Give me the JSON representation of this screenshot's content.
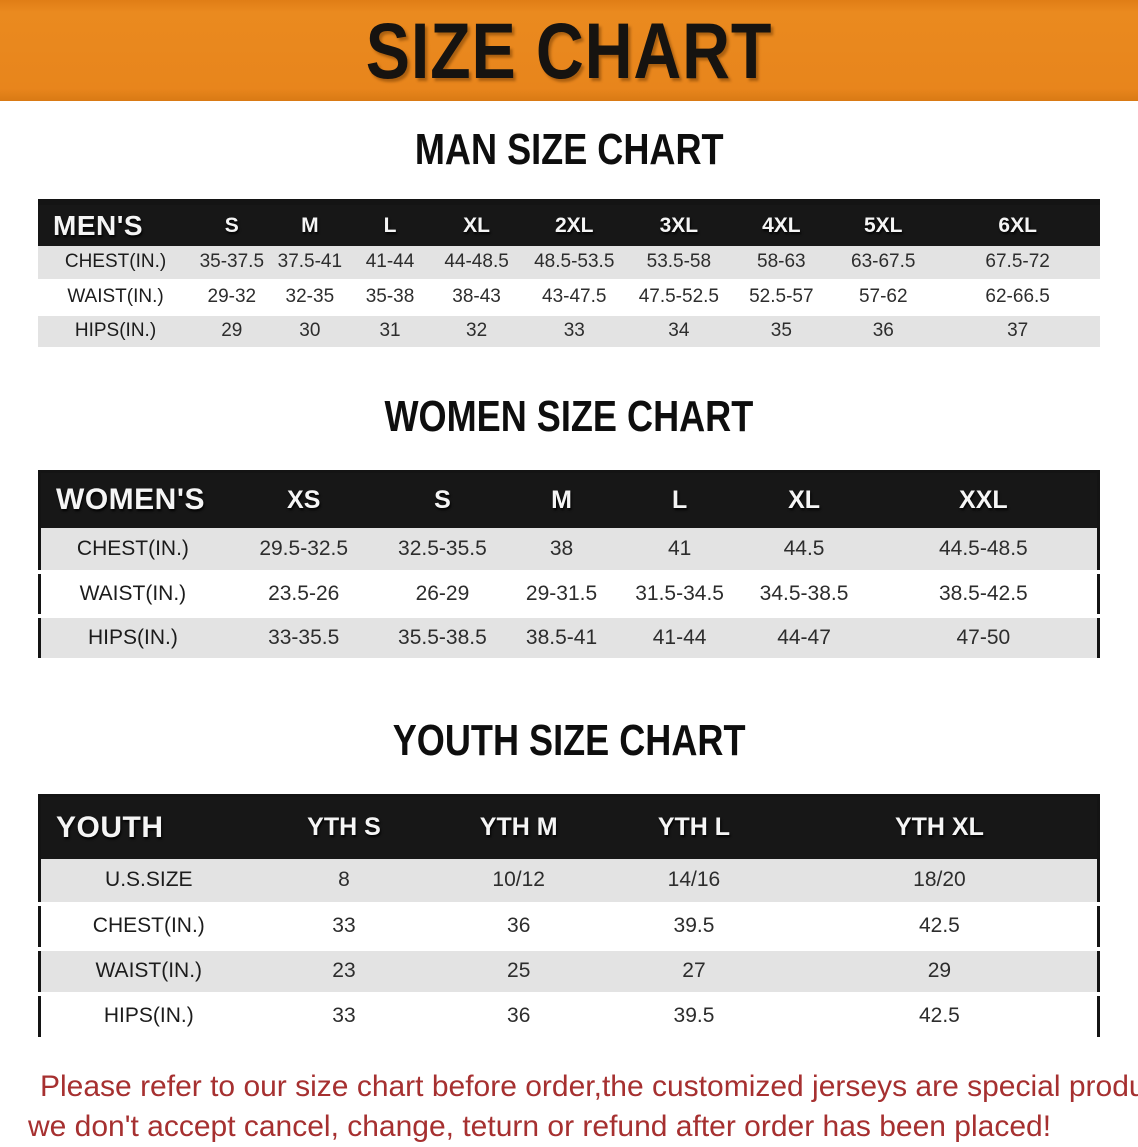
{
  "banner": {
    "title": "SIZE CHART"
  },
  "sections": [
    {
      "heading": "MAN SIZE CHART",
      "table": {
        "header": [
          "MEN'S",
          "S",
          "M",
          "L",
          "XL",
          "2XL",
          "3XL",
          "4XL",
          "5XL",
          "6XL"
        ],
        "rows": [
          [
            "CHEST(IN.)",
            "35-37.5",
            "37.5-41",
            "41-44",
            "44-48.5",
            "48.5-53.5",
            "53.5-58",
            "58-63",
            "63-67.5",
            "67.5-72"
          ],
          [
            "WAIST(IN.)",
            "29-32",
            "32-35",
            "35-38",
            "38-43",
            "43-47.5",
            "47.5-52.5",
            "52.5-57",
            "57-62",
            "62-66.5"
          ],
          [
            "HIPS(IN.)",
            "29",
            "30",
            "31",
            "32",
            "33",
            "34",
            "35",
            "36",
            "37"
          ]
        ]
      }
    },
    {
      "heading": "WOMEN SIZE CHART",
      "table": {
        "header": [
          "WOMEN'S",
          "XS",
          "S",
          "M",
          "L",
          "XL",
          "XXL"
        ],
        "rows": [
          [
            "CHEST(IN.)",
            "29.5-32.5",
            "32.5-35.5",
            "38",
            "41",
            "44.5",
            "44.5-48.5"
          ],
          [
            "WAIST(IN.)",
            "23.5-26",
            "26-29",
            "29-31.5",
            "31.5-34.5",
            "34.5-38.5",
            "38.5-42.5"
          ],
          [
            "HIPS(IN.)",
            "33-35.5",
            "35.5-38.5",
            "38.5-41",
            "41-44",
            "44-47",
            "47-50"
          ]
        ]
      }
    },
    {
      "heading": "YOUTH SIZE CHART",
      "table": {
        "header": [
          "YOUTH",
          "YTH S",
          "YTH M",
          "YTH L",
          "YTH XL"
        ],
        "rows": [
          [
            "U.S.SIZE",
            "8",
            "10/12",
            "14/16",
            "18/20"
          ],
          [
            "CHEST(IN.)",
            "33",
            "36",
            "39.5",
            "42.5"
          ],
          [
            "WAIST(IN.)",
            "23",
            "25",
            "27",
            "29"
          ],
          [
            "HIPS(IN.)",
            "33",
            "36",
            "39.5",
            "42.5"
          ]
        ]
      }
    }
  ],
  "footer": {
    "line1": "Please refer to our size chart before order,the customized jerseys are special products,",
    "line2": "we don't accept cancel, change, teturn or refund after order has been placed!"
  },
  "colors": {
    "banner_bg": "#E8851C",
    "banner_text": "#161310",
    "table_header_bg": "#171717",
    "table_header_text": "#F5F5F5",
    "row_stripe": "#E3E3E3",
    "footer_text": "#A63030"
  }
}
